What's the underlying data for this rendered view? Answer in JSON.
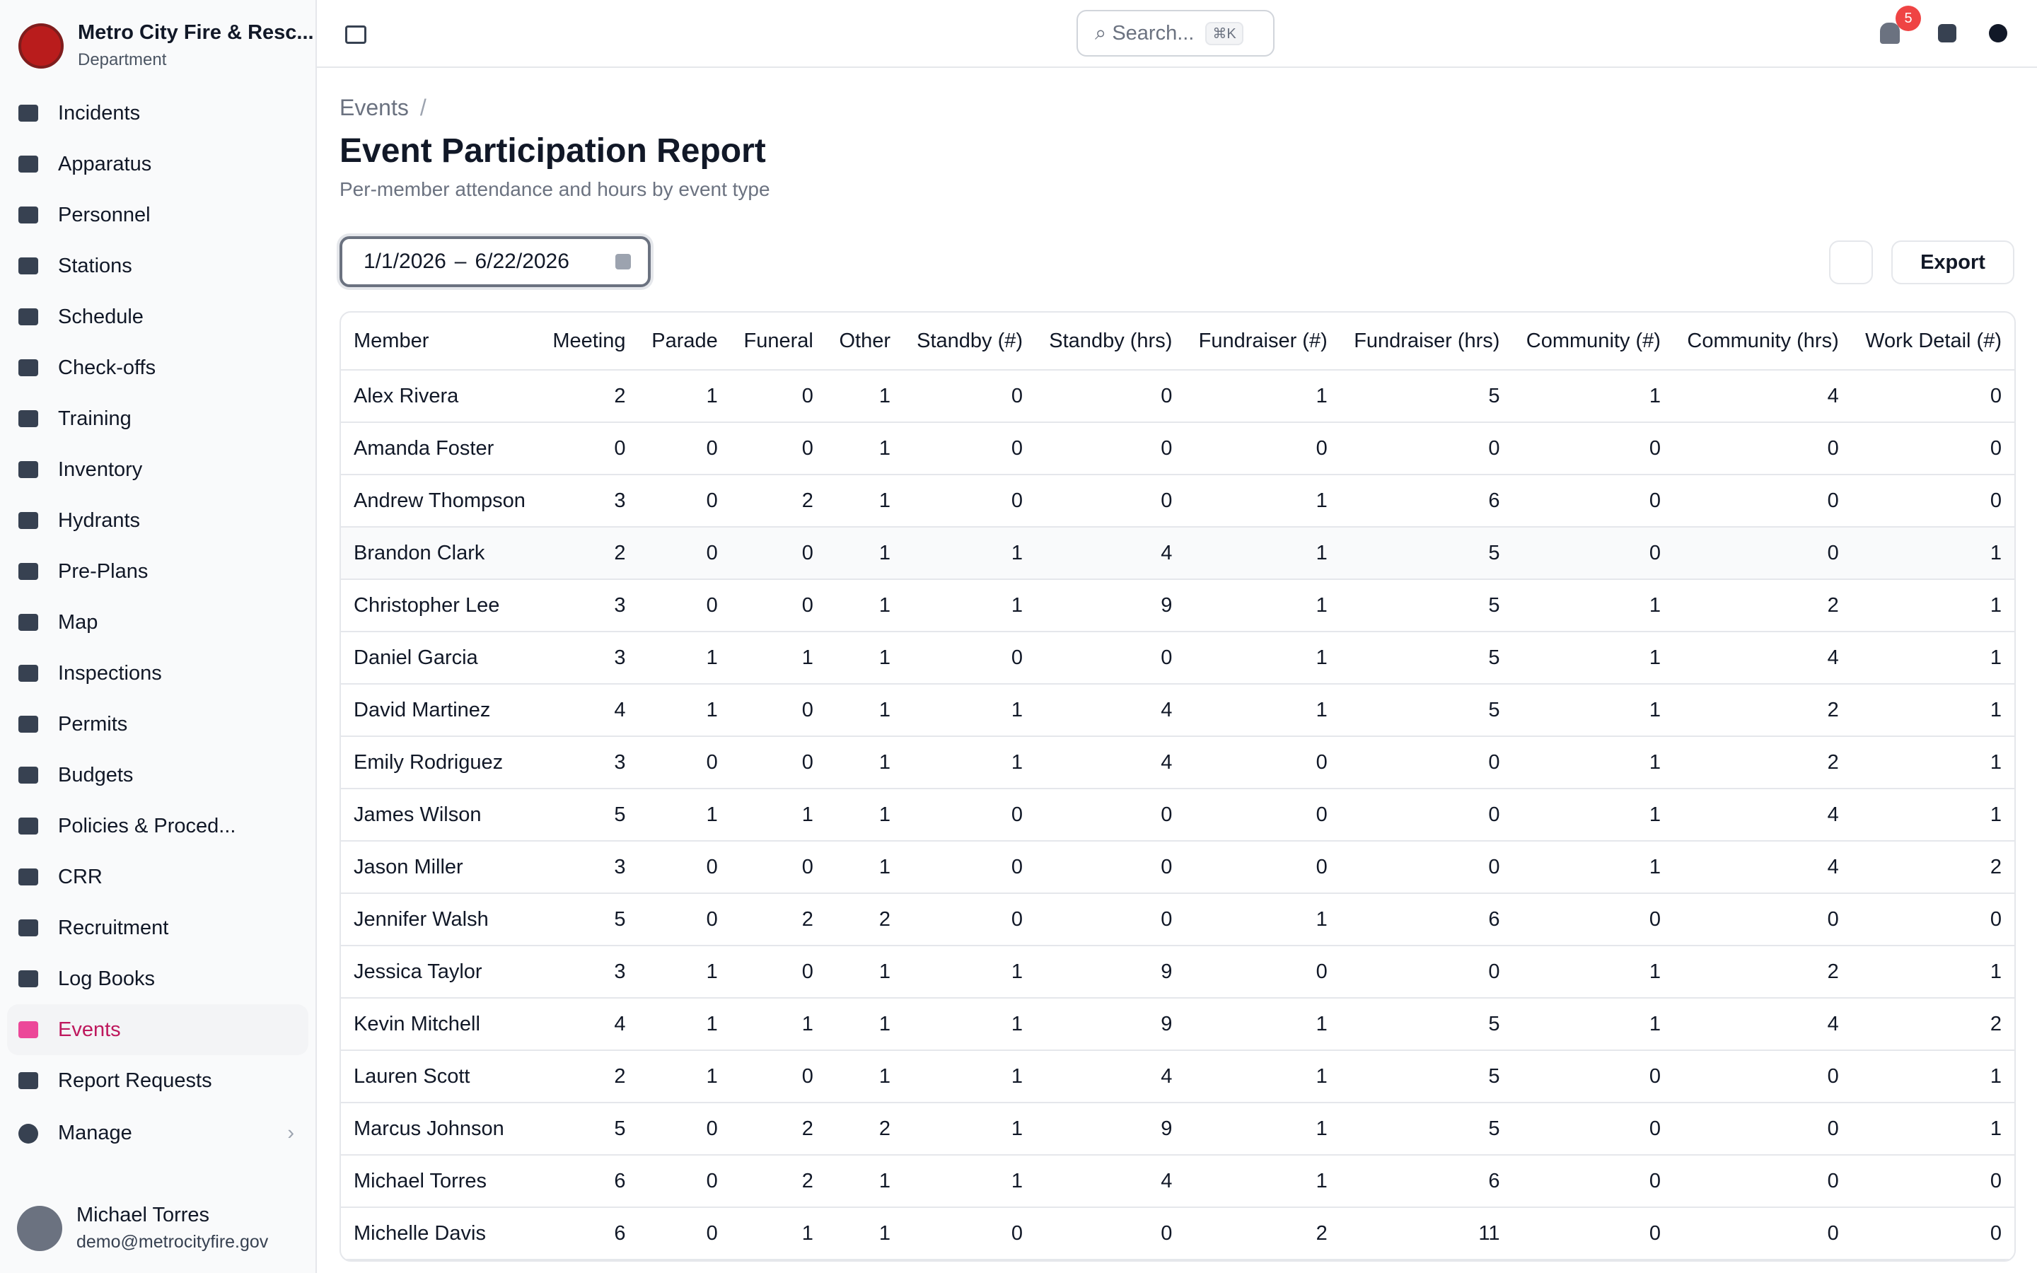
{
  "sidebar": {
    "org_name": "Metro City Fire & Resc...",
    "org_sub": "Department",
    "nav": [
      "Incidents",
      "Apparatus",
      "Personnel",
      "Stations",
      "Schedule",
      "Check-offs",
      "Training",
      "Inventory",
      "Hydrants",
      "Pre-Plans",
      "Map",
      "Inspections",
      "Permits",
      "Budgets",
      "Policies & Proced...",
      "CRR",
      "Recruitment",
      "Log Books",
      "Events",
      "Report Requests"
    ],
    "manage": "Manage",
    "user": {
      "name": "Michael Torres",
      "email": "demo@metrocityfire.gov"
    }
  },
  "header": {
    "search": "Search...",
    "shortcut": "⌘K",
    "notifications": "5"
  },
  "page": {
    "breadcrumb": "Events",
    "breadcrumb_sep": "/",
    "title": "Event Participation Report",
    "subtitle": "Per-member attendance and hours by event type",
    "date_start": "1/1/2026",
    "date_sep": "–",
    "date_end": "6/22/2026",
    "export": "Export"
  },
  "table": {
    "columns": [
      "Member",
      "Meeting",
      "Parade",
      "Funeral",
      "Other",
      "Standby (#)",
      "Standby (hrs)",
      "Fundraiser (#)",
      "Fundraiser (hrs)",
      "Community (#)",
      "Community (hrs)",
      "Work Detail (#)"
    ],
    "rows": [
      [
        "Alex Rivera",
        2,
        1,
        0,
        1,
        0,
        0,
        1,
        5,
        1,
        4,
        0
      ],
      [
        "Amanda Foster",
        0,
        0,
        0,
        1,
        0,
        0,
        0,
        0,
        0,
        0,
        0
      ],
      [
        "Andrew Thompson",
        3,
        0,
        2,
        1,
        0,
        0,
        1,
        6,
        0,
        0,
        0
      ],
      [
        "Brandon Clark",
        2,
        0,
        0,
        1,
        1,
        4,
        1,
        5,
        0,
        0,
        1
      ],
      [
        "Christopher Lee",
        3,
        0,
        0,
        1,
        1,
        9,
        1,
        5,
        1,
        2,
        1
      ],
      [
        "Daniel Garcia",
        3,
        1,
        1,
        1,
        0,
        0,
        1,
        5,
        1,
        4,
        1
      ],
      [
        "David Martinez",
        4,
        1,
        0,
        1,
        1,
        4,
        1,
        5,
        1,
        2,
        1
      ],
      [
        "Emily Rodriguez",
        3,
        0,
        0,
        1,
        1,
        4,
        0,
        0,
        1,
        2,
        1
      ],
      [
        "James Wilson",
        5,
        1,
        1,
        1,
        0,
        0,
        0,
        0,
        1,
        4,
        1
      ],
      [
        "Jason Miller",
        3,
        0,
        0,
        1,
        0,
        0,
        0,
        0,
        1,
        4,
        2
      ],
      [
        "Jennifer Walsh",
        5,
        0,
        2,
        2,
        0,
        0,
        1,
        6,
        0,
        0,
        0
      ],
      [
        "Jessica Taylor",
        3,
        1,
        0,
        1,
        1,
        9,
        0,
        0,
        1,
        2,
        1
      ],
      [
        "Kevin Mitchell",
        4,
        1,
        1,
        1,
        1,
        9,
        1,
        5,
        1,
        4,
        2
      ],
      [
        "Lauren Scott",
        2,
        1,
        0,
        1,
        1,
        4,
        1,
        5,
        0,
        0,
        1
      ],
      [
        "Marcus Johnson",
        5,
        0,
        2,
        2,
        1,
        9,
        1,
        5,
        0,
        0,
        1
      ],
      [
        "Michael Torres",
        6,
        0,
        2,
        1,
        1,
        4,
        1,
        6,
        0,
        0,
        0
      ],
      [
        "Michelle Davis",
        6,
        0,
        1,
        1,
        0,
        0,
        2,
        11,
        0,
        0,
        0
      ]
    ]
  }
}
